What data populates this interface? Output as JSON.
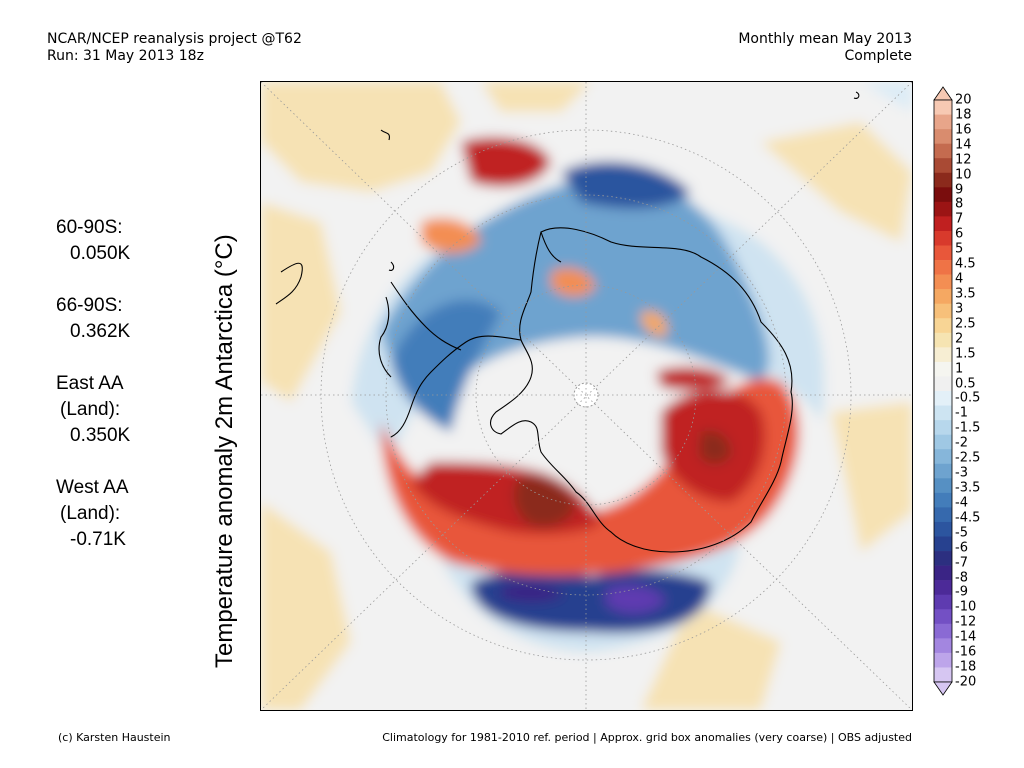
{
  "header": {
    "project": "NCAR/NCEP reanalysis project @T62",
    "run": "Run: 31 May 2013 18z",
    "period": "Monthly mean May 2013",
    "status": "Complete"
  },
  "axis_label": "Temperature anomaly 2m Antarctica (°C)",
  "stats": [
    {
      "label": "60-90S:",
      "value": "0.050K"
    },
    {
      "label": "66-90S:",
      "value": "0.362K"
    },
    {
      "label": "East AA",
      "sub": "(Land):",
      "value": "0.350K"
    },
    {
      "label": "West AA",
      "sub": "(Land):",
      "value": "-0.71K"
    }
  ],
  "colorbar": {
    "ticks": [
      "20",
      "18",
      "16",
      "14",
      "12",
      "10",
      "9",
      "8",
      "7",
      "6",
      "5",
      "4.5",
      "4",
      "3.5",
      "3",
      "2.5",
      "2",
      "1.5",
      "1",
      "0.5",
      "-0.5",
      "-1",
      "-1.5",
      "-2",
      "-2.5",
      "-3",
      "-3.5",
      "-4",
      "-4.5",
      "-5",
      "-6",
      "-7",
      "-8",
      "-9",
      "-10",
      "-12",
      "-14",
      "-16",
      "-18",
      "-20"
    ],
    "colors": [
      "#f7c9b3",
      "#e8a58a",
      "#d98c6e",
      "#c46b4f",
      "#a94a34",
      "#8b2a1c",
      "#7a0d0d",
      "#9b1414",
      "#c02020",
      "#d83a2c",
      "#e8573a",
      "#ef7346",
      "#f38e53",
      "#f5a862",
      "#f7c07a",
      "#f8d595",
      "#f6e4b2",
      "#f7eed3",
      "#f5f5f0",
      "#f0f0f0",
      "#e3f0f8",
      "#cde4f2",
      "#b7d7ec",
      "#9fc8e4",
      "#86b6da",
      "#6ea3cf",
      "#5690c3",
      "#437dba",
      "#3669ad",
      "#2c559f",
      "#27418f",
      "#2c2f80",
      "#3a2485",
      "#4c2a98",
      "#5e3bb0",
      "#7350c4",
      "#8a6ad4",
      "#a386e0",
      "#bda5ea",
      "#d6c6f2"
    ]
  },
  "footer": {
    "credit": "(c) Karsten Haustein",
    "note": "Climatology for 1981-2010 ref. period | Approx. grid box anomalies (very coarse) | OBS adjusted"
  }
}
